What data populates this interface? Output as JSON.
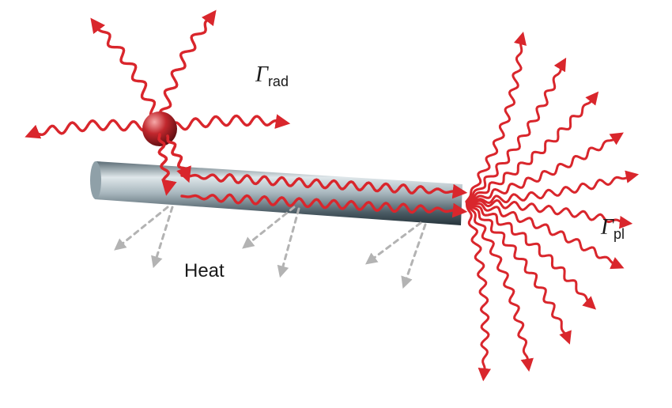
{
  "labels": {
    "gamma_rad": {
      "symbol": "Γ",
      "subscript": "rad"
    },
    "gamma_pl": {
      "symbol": "Γ",
      "subscript": "pl"
    },
    "heat": "Heat"
  },
  "colors": {
    "photon": "#d9262c",
    "heat_arrow": "#b3b3b3",
    "rod_light": "#dfe7ea",
    "rod_dark": "#3e4e57",
    "emitter": "#c1272d"
  }
}
